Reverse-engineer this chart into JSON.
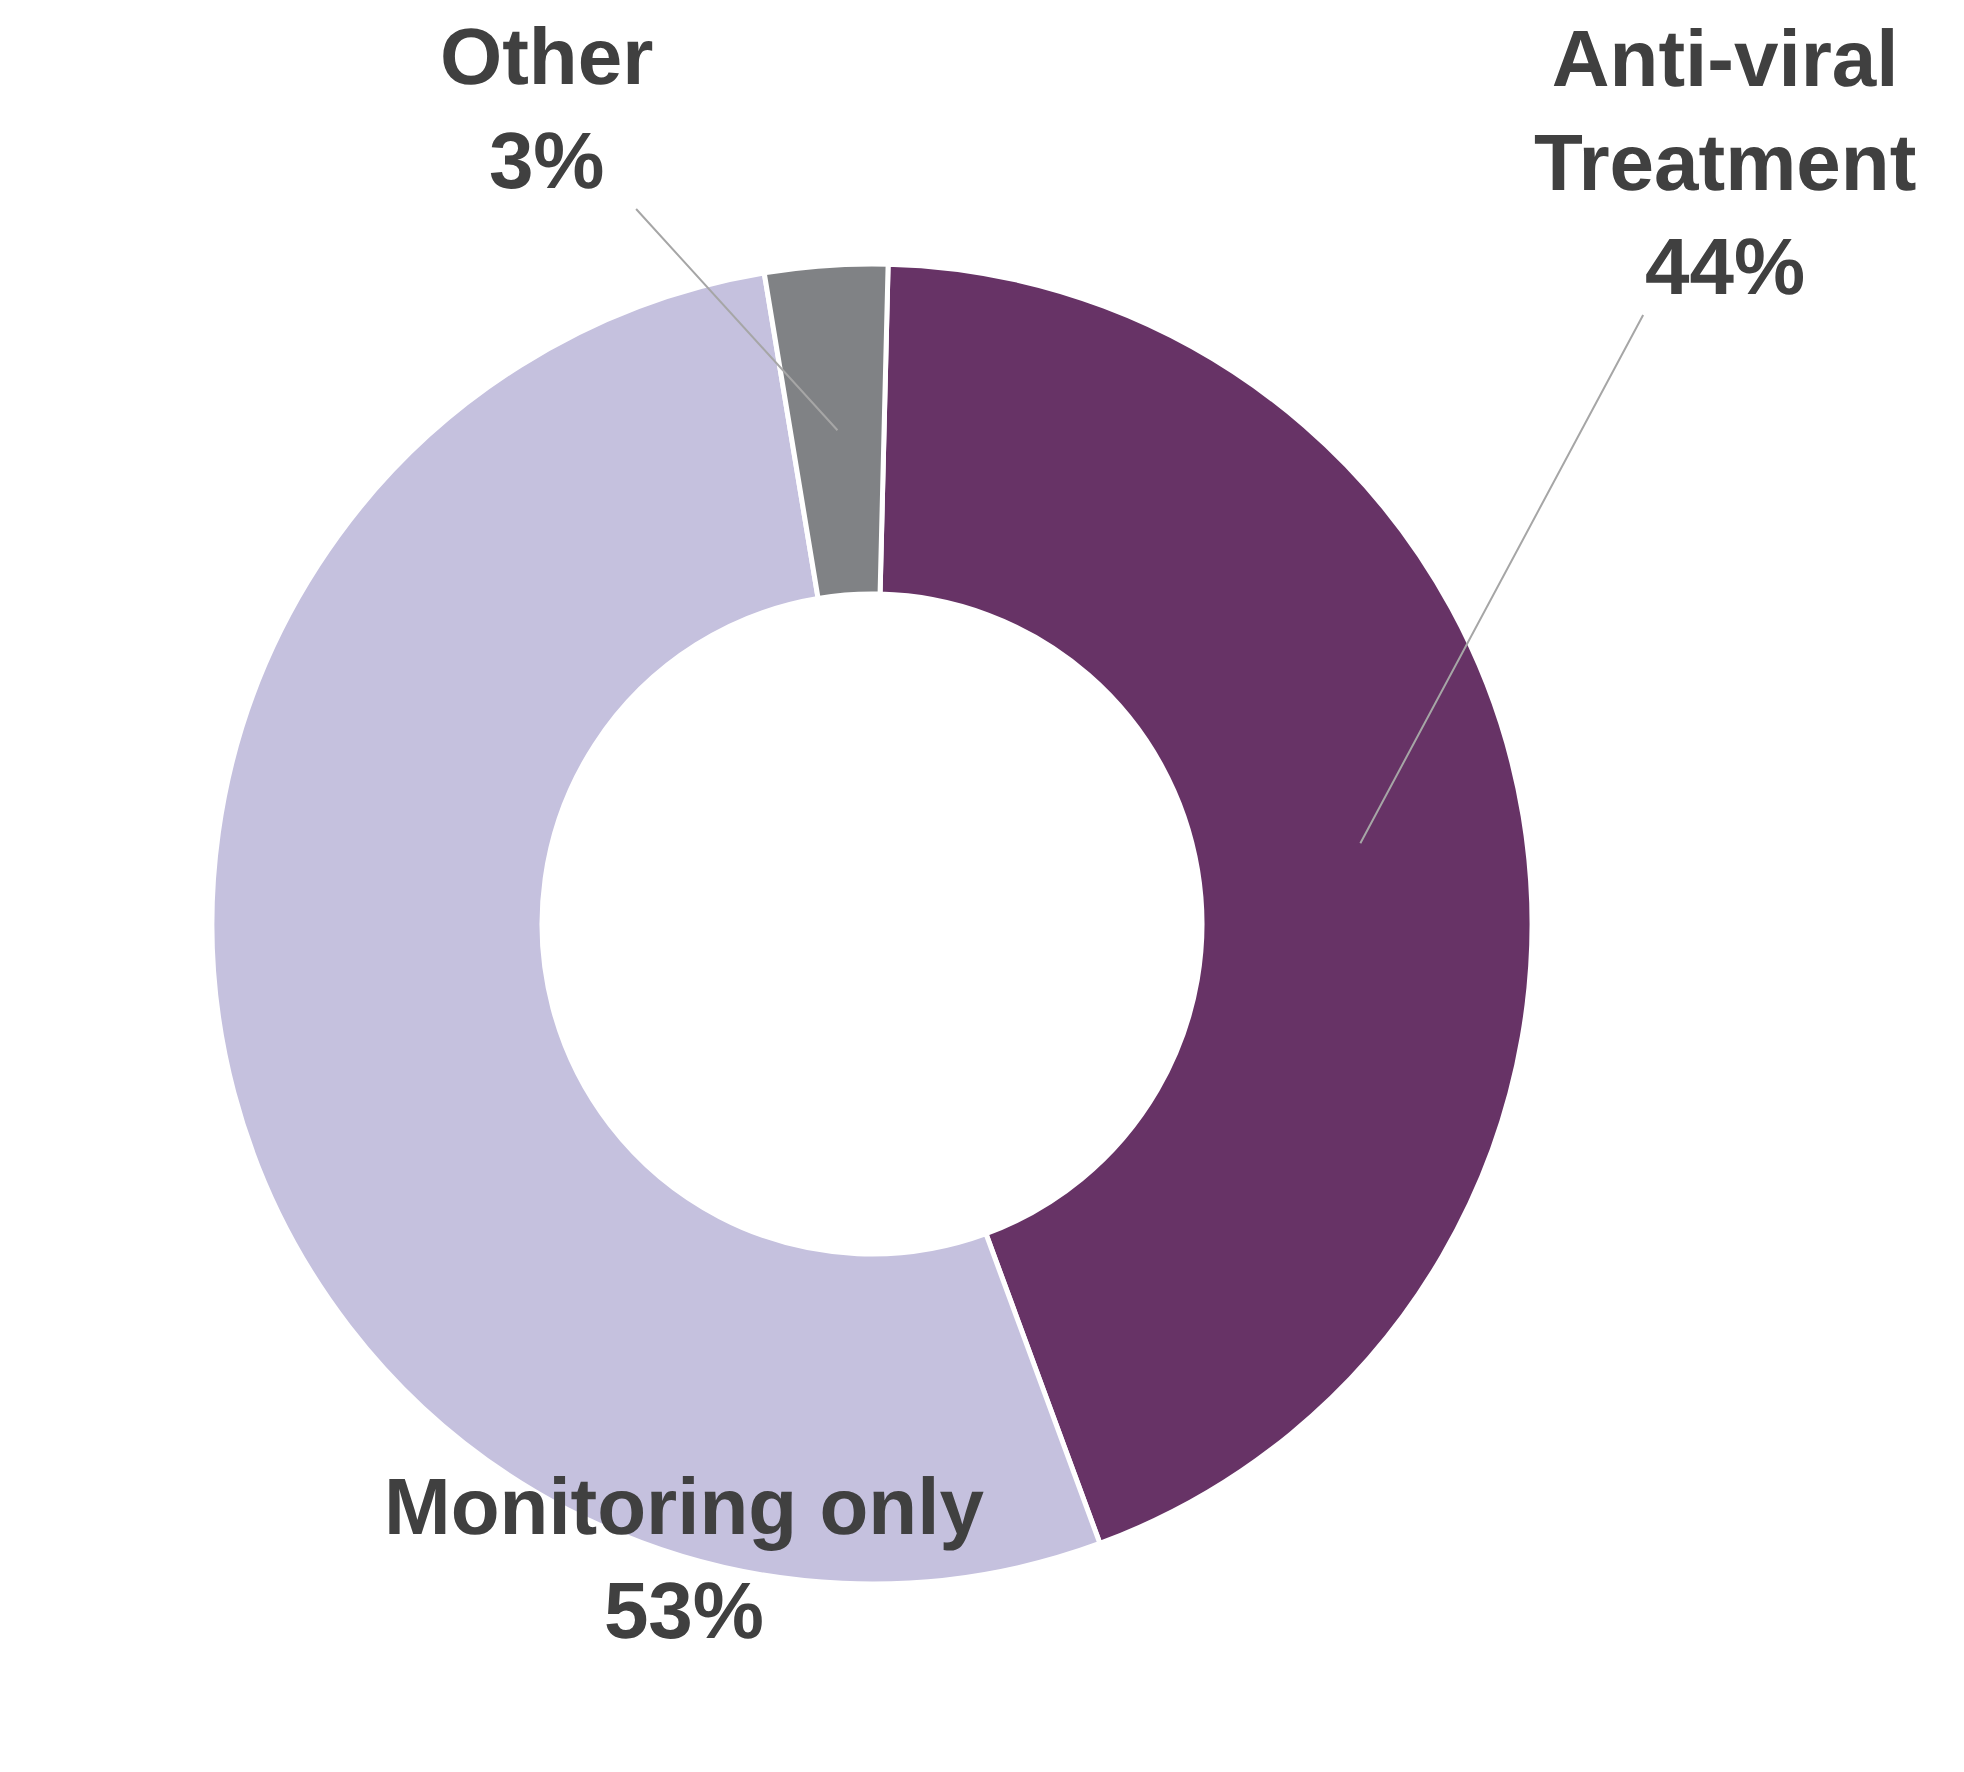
{
  "chart_data": {
    "type": "donut",
    "categories": [
      "Anti-viral Treatment",
      "Monitoring only",
      "Other"
    ],
    "values": [
      44,
      53,
      3
    ],
    "value_labels": [
      "44%",
      "53%",
      "3%"
    ],
    "colors": [
      "#673366",
      "#c5c1de",
      "#808285"
    ]
  }
}
